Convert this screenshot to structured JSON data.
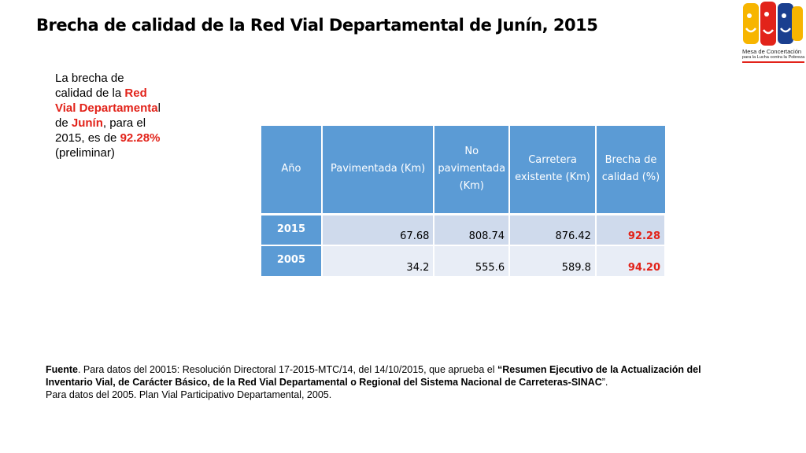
{
  "title": "Brecha de calidad de la Red Vial Departamental de Junín, 2015",
  "logo": {
    "line1": "Mesa de Concertación",
    "line2": "para la Lucha contra la Pobreza",
    "colors": [
      "#f7b500",
      "#e2231a",
      "#1a3f8f"
    ]
  },
  "description": {
    "p1": "La brecha de calidad de la ",
    "h1": "Red Vial Departamenta",
    "p2": "l de ",
    "h2": "Junín",
    "p3": ", para el 2015, es de ",
    "h3": "92.28%",
    "p4": " (preliminar)"
  },
  "table": {
    "headers": [
      "Año",
      "Pavimentada (Km)",
      "No pavimentada (Km)",
      "Carretera existente (Km)",
      "Brecha de calidad (%)"
    ],
    "rows": [
      {
        "year": "2015",
        "paved": "67.68",
        "unpaved": "808.74",
        "existing": "876.42",
        "gap": "92.28"
      },
      {
        "year": "2005",
        "paved": "34.2",
        "unpaved": "555.6",
        "existing": "589.8",
        "gap": "94.20"
      }
    ]
  },
  "source": {
    "label": "Fuente",
    "t1": ". Para datos del 20015: Resolución Directoral 17-2015-MTC/14, del 14/10/2015, que aprueba el ",
    "b1": "“Resumen Ejecutivo de la Actualización del Inventario Vial, de Carácter Básico, de la Red Vial Departamental o Regional del Sistema Nacional de Carreteras-SINAC",
    "t2": "”.",
    "line2": "Para datos del 2005. Plan Vial Participativo Departamental, 2005."
  }
}
